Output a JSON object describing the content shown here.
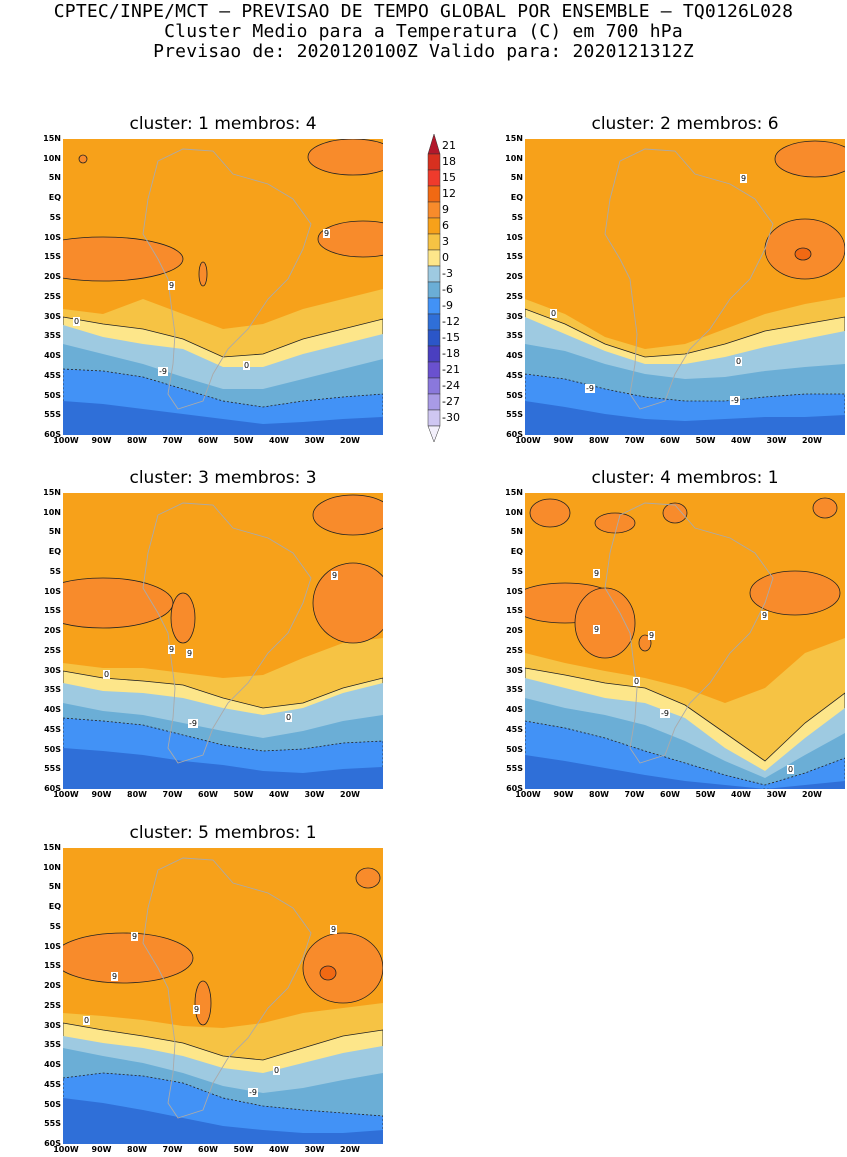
{
  "header": {
    "line1": "CPTEC/INPE/MCT – PREVISAO DE TEMPO GLOBAL POR ENSEMBLE – TQ0126L028",
    "line2": "Cluster Medio para a Temperatura (C) em 700 hPa",
    "line3": "Previsao de: 2020120100Z   Valido para: 2020121312Z"
  },
  "lat_labels": [
    "15N",
    "10N",
    "5N",
    "EQ",
    "5S",
    "10S",
    "15S",
    "20S",
    "25S",
    "30S",
    "35S",
    "40S",
    "45S",
    "50S",
    "55S",
    "60S"
  ],
  "lon_labels": [
    "100W",
    "90W",
    "80W",
    "70W",
    "60W",
    "50W",
    "40W",
    "30W",
    "20W"
  ],
  "panels": [
    {
      "title": "cluster: 1   membros: 4",
      "contour_labels": [
        "9",
        "9",
        "0",
        "0",
        "-9"
      ]
    },
    {
      "title": "cluster: 2   membros: 6",
      "contour_labels": [
        "9",
        "0",
        "0",
        "-9",
        "-9"
      ]
    },
    {
      "title": "cluster: 3   membros: 3",
      "contour_labels": [
        "9",
        "9",
        "9",
        "0",
        "0",
        "-9"
      ]
    },
    {
      "title": "cluster: 4   membros: 1",
      "contour_labels": [
        "9",
        "9",
        "9",
        "9",
        "0",
        "-9",
        "0"
      ]
    },
    {
      "title": "cluster: 5   membros: 1",
      "contour_labels": [
        "9",
        "9",
        "9",
        "9",
        "0",
        "0",
        "-9"
      ]
    }
  ],
  "legend": {
    "levels": [
      "21",
      "18",
      "15",
      "12",
      "9",
      "6",
      "3",
      "0",
      "-3",
      "-6",
      "-9",
      "-12",
      "-15",
      "-18",
      "-21",
      "-24",
      "-27",
      "-30"
    ],
    "colors": [
      "#b2182b",
      "#d7301f",
      "#ef3b2c",
      "#f16913",
      "#f88b2b",
      "#f7a11a",
      "#f6c344",
      "#fde68a",
      "#9ecae1",
      "#6baed6",
      "#4292f6",
      "#2f6fd8",
      "#2b56c8",
      "#4a3fc0",
      "#6a51cf",
      "#8a78dc",
      "#a99be6",
      "#cfc7f2",
      "#f3f0fb"
    ]
  }
}
